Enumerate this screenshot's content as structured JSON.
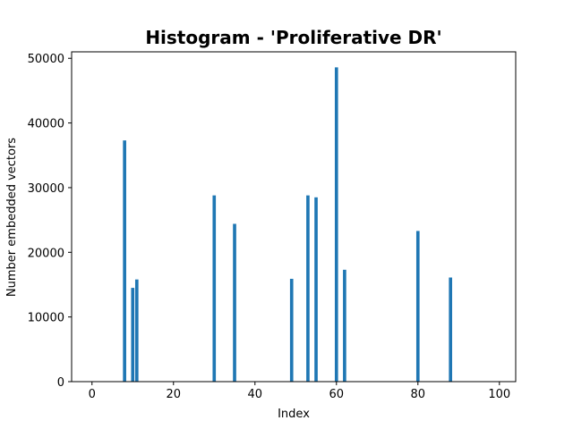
{
  "chart_data": {
    "type": "bar",
    "title": "Histogram - 'Proliferative DR'",
    "xlabel": "Index",
    "ylabel": "Number embedded vectors",
    "xlim": [
      -5,
      104
    ],
    "ylim": [
      0,
      51000
    ],
    "xticks": [
      0,
      20,
      40,
      60,
      80,
      100
    ],
    "yticks": [
      0,
      10000,
      20000,
      30000,
      40000,
      50000
    ],
    "grid": false,
    "bar_color": "#1f77b4",
    "bar_width": 0.8,
    "x": [
      8,
      10,
      11,
      30,
      35,
      49,
      53,
      55,
      60,
      62,
      80,
      88
    ],
    "values": [
      37300,
      14500,
      15800,
      28800,
      24400,
      15900,
      28800,
      28500,
      48600,
      17300,
      23300,
      16100
    ]
  }
}
